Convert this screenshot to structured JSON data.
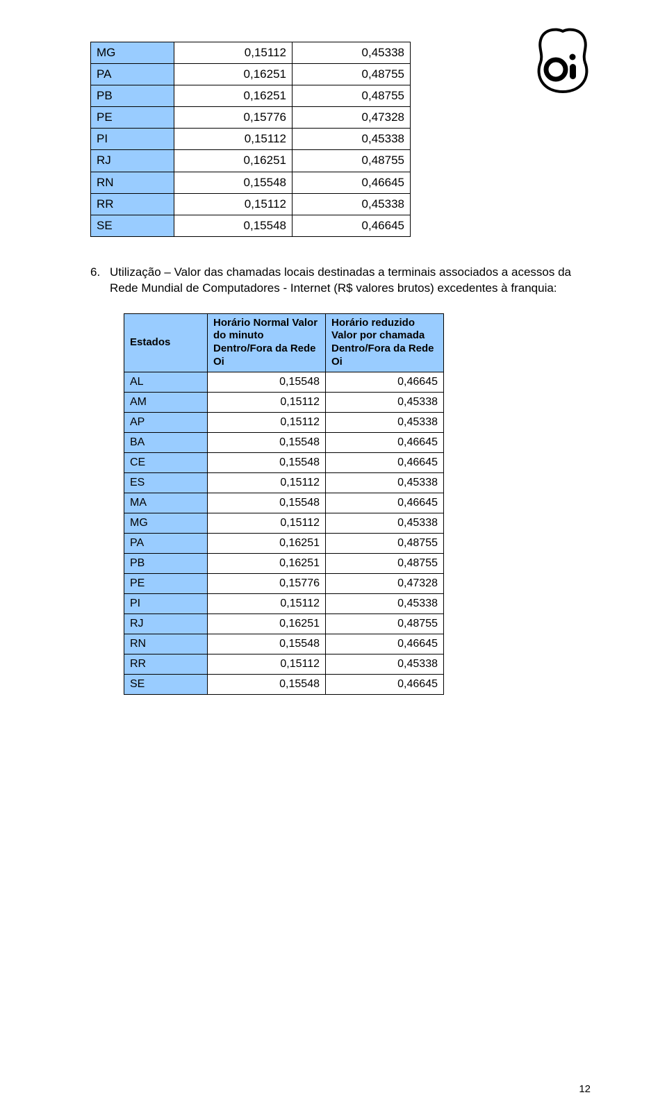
{
  "logo": {
    "text": "oi"
  },
  "table1": {
    "rows": [
      {
        "state": "MG",
        "v1": "0,15112",
        "v2": "0,45338"
      },
      {
        "state": "PA",
        "v1": "0,16251",
        "v2": "0,48755"
      },
      {
        "state": "PB",
        "v1": "0,16251",
        "v2": "0,48755"
      },
      {
        "state": "PE",
        "v1": "0,15776",
        "v2": "0,47328"
      },
      {
        "state": "PI",
        "v1": "0,15112",
        "v2": "0,45338"
      },
      {
        "state": "RJ",
        "v1": "0,16251",
        "v2": "0,48755"
      },
      {
        "state": "RN",
        "v1": "0,15548",
        "v2": "0,46645"
      },
      {
        "state": "RR",
        "v1": "0,15112",
        "v2": "0,45338"
      },
      {
        "state": "SE",
        "v1": "0,15548",
        "v2": "0,46645"
      }
    ]
  },
  "paragraph": {
    "number": "6.",
    "text": "Utilização – Valor das chamadas locais destinadas a terminais associados a acessos da Rede Mundial de Computadores - Internet (R$ valores brutos) excedentes à franquia:"
  },
  "table2": {
    "headers": {
      "h0": "Estados",
      "h1": "Horário Normal Valor do minuto Dentro/Fora da Rede Oi",
      "h2": "Horário reduzido Valor por chamada Dentro/Fora da Rede Oi"
    },
    "rows": [
      {
        "state": "AL",
        "v1": "0,15548",
        "v2": "0,46645"
      },
      {
        "state": "AM",
        "v1": "0,15112",
        "v2": "0,45338"
      },
      {
        "state": "AP",
        "v1": "0,15112",
        "v2": "0,45338"
      },
      {
        "state": "BA",
        "v1": "0,15548",
        "v2": "0,46645"
      },
      {
        "state": "CE",
        "v1": "0,15548",
        "v2": "0,46645"
      },
      {
        "state": "ES",
        "v1": "0,15112",
        "v2": "0,45338"
      },
      {
        "state": "MA",
        "v1": "0,15548",
        "v2": "0,46645"
      },
      {
        "state": "MG",
        "v1": "0,15112",
        "v2": "0,45338"
      },
      {
        "state": "PA",
        "v1": "0,16251",
        "v2": "0,48755"
      },
      {
        "state": "PB",
        "v1": "0,16251",
        "v2": "0,48755"
      },
      {
        "state": "PE",
        "v1": "0,15776",
        "v2": "0,47328"
      },
      {
        "state": "PI",
        "v1": "0,15112",
        "v2": "0,45338"
      },
      {
        "state": "RJ",
        "v1": "0,16251",
        "v2": "0,48755"
      },
      {
        "state": "RN",
        "v1": "0,15548",
        "v2": "0,46645"
      },
      {
        "state": "RR",
        "v1": "0,15112",
        "v2": "0,45338"
      },
      {
        "state": "SE",
        "v1": "0,15548",
        "v2": "0,46645"
      }
    ]
  },
  "page_number": "12",
  "colors": {
    "header_bg": "#99ccff",
    "border": "#000000",
    "text": "#000000",
    "background": "#ffffff"
  }
}
